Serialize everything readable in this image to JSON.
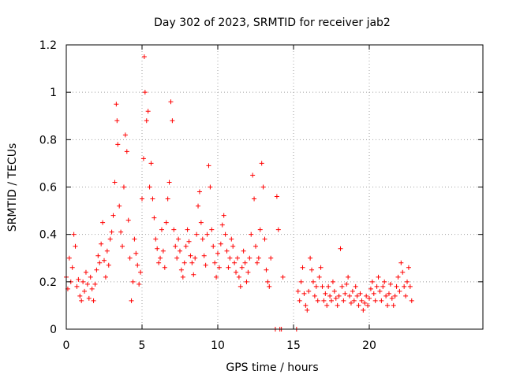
{
  "chart_data": {
    "type": "scatter",
    "title": "Day 302 of 2023, SRMTID for receiver jab2",
    "xlabel": "GPS time / hours",
    "ylabel": "SRMTID / TECUs",
    "xlim": [
      0,
      27.5
    ],
    "ylim": [
      0,
      1.2
    ],
    "xticks": [
      0,
      5,
      10,
      15,
      20
    ],
    "xtick_labels": [
      "0",
      "5",
      "10",
      "15",
      "20"
    ],
    "yticks": [
      0,
      0.2,
      0.4,
      0.6,
      0.8,
      1.0,
      1.2
    ],
    "ytick_labels": [
      "0",
      "0.2",
      "0.4",
      "0.6",
      "0.8",
      "1",
      "1.2"
    ],
    "grid": true,
    "legend": "none",
    "marker": "plus",
    "color": "#ff0000",
    "series": [
      {
        "name": "jab2",
        "points": [
          [
            0.0,
            0.22
          ],
          [
            0.1,
            0.17
          ],
          [
            0.2,
            0.3
          ],
          [
            0.3,
            0.2
          ],
          [
            0.4,
            0.26
          ],
          [
            0.5,
            0.4
          ],
          [
            0.6,
            0.35
          ],
          [
            0.7,
            0.18
          ],
          [
            0.8,
            0.21
          ],
          [
            0.9,
            0.14
          ],
          [
            1.0,
            0.12
          ],
          [
            1.1,
            0.2
          ],
          [
            1.2,
            0.16
          ],
          [
            1.3,
            0.24
          ],
          [
            1.4,
            0.19
          ],
          [
            1.5,
            0.13
          ],
          [
            1.6,
            0.22
          ],
          [
            1.7,
            0.17
          ],
          [
            1.8,
            0.12
          ],
          [
            1.9,
            0.19
          ],
          [
            2.0,
            0.25
          ],
          [
            2.1,
            0.31
          ],
          [
            2.2,
            0.28
          ],
          [
            2.3,
            0.36
          ],
          [
            2.4,
            0.45
          ],
          [
            2.5,
            0.29
          ],
          [
            2.6,
            0.22
          ],
          [
            2.7,
            0.33
          ],
          [
            2.8,
            0.27
          ],
          [
            2.9,
            0.38
          ],
          [
            3.0,
            0.41
          ],
          [
            3.1,
            0.48
          ],
          [
            3.2,
            0.62
          ],
          [
            3.3,
            0.95
          ],
          [
            3.35,
            0.88
          ],
          [
            3.4,
            0.78
          ],
          [
            3.5,
            0.52
          ],
          [
            3.6,
            0.41
          ],
          [
            3.7,
            0.35
          ],
          [
            3.8,
            0.6
          ],
          [
            3.9,
            0.82
          ],
          [
            4.0,
            0.75
          ],
          [
            4.1,
            0.46
          ],
          [
            4.2,
            0.3
          ],
          [
            4.3,
            0.12
          ],
          [
            4.4,
            0.2
          ],
          [
            4.5,
            0.38
          ],
          [
            4.6,
            0.32
          ],
          [
            4.7,
            0.27
          ],
          [
            4.8,
            0.19
          ],
          [
            4.9,
            0.24
          ],
          [
            5.0,
            0.55
          ],
          [
            5.1,
            0.72
          ],
          [
            5.15,
            1.15
          ],
          [
            5.2,
            1.0
          ],
          [
            5.3,
            0.88
          ],
          [
            5.4,
            0.92
          ],
          [
            5.5,
            0.6
          ],
          [
            5.6,
            0.7
          ],
          [
            5.7,
            0.55
          ],
          [
            5.8,
            0.47
          ],
          [
            5.9,
            0.38
          ],
          [
            6.0,
            0.34
          ],
          [
            6.1,
            0.28
          ],
          [
            6.2,
            0.3
          ],
          [
            6.3,
            0.42
          ],
          [
            6.4,
            0.33
          ],
          [
            6.5,
            0.26
          ],
          [
            6.6,
            0.45
          ],
          [
            6.7,
            0.55
          ],
          [
            6.8,
            0.62
          ],
          [
            6.9,
            0.96
          ],
          [
            7.0,
            0.88
          ],
          [
            7.1,
            0.42
          ],
          [
            7.2,
            0.35
          ],
          [
            7.3,
            0.3
          ],
          [
            7.4,
            0.38
          ],
          [
            7.5,
            0.33
          ],
          [
            7.6,
            0.25
          ],
          [
            7.7,
            0.22
          ],
          [
            7.8,
            0.28
          ],
          [
            7.9,
            0.35
          ],
          [
            8.0,
            0.42
          ],
          [
            8.1,
            0.37
          ],
          [
            8.2,
            0.31
          ],
          [
            8.3,
            0.28
          ],
          [
            8.4,
            0.23
          ],
          [
            8.5,
            0.3
          ],
          [
            8.6,
            0.4
          ],
          [
            8.7,
            0.52
          ],
          [
            8.8,
            0.58
          ],
          [
            8.9,
            0.45
          ],
          [
            9.0,
            0.38
          ],
          [
            9.1,
            0.31
          ],
          [
            9.2,
            0.27
          ],
          [
            9.3,
            0.4
          ],
          [
            9.4,
            0.69
          ],
          [
            9.5,
            0.6
          ],
          [
            9.6,
            0.42
          ],
          [
            9.7,
            0.35
          ],
          [
            9.8,
            0.28
          ],
          [
            9.9,
            0.22
          ],
          [
            10.0,
            0.32
          ],
          [
            10.1,
            0.26
          ],
          [
            10.2,
            0.36
          ],
          [
            10.3,
            0.44
          ],
          [
            10.4,
            0.48
          ],
          [
            10.5,
            0.4
          ],
          [
            10.6,
            0.33
          ],
          [
            10.7,
            0.26
          ],
          [
            10.8,
            0.3
          ],
          [
            10.9,
            0.38
          ],
          [
            11.0,
            0.35
          ],
          [
            11.1,
            0.28
          ],
          [
            11.2,
            0.24
          ],
          [
            11.3,
            0.3
          ],
          [
            11.4,
            0.22
          ],
          [
            11.5,
            0.18
          ],
          [
            11.6,
            0.26
          ],
          [
            11.7,
            0.33
          ],
          [
            11.8,
            0.28
          ],
          [
            11.9,
            0.2
          ],
          [
            12.0,
            0.24
          ],
          [
            12.1,
            0.3
          ],
          [
            12.2,
            0.4
          ],
          [
            12.3,
            0.65
          ],
          [
            12.4,
            0.55
          ],
          [
            12.5,
            0.35
          ],
          [
            12.6,
            0.28
          ],
          [
            12.7,
            0.3
          ],
          [
            12.8,
            0.42
          ],
          [
            12.9,
            0.7
          ],
          [
            13.0,
            0.6
          ],
          [
            13.1,
            0.38
          ],
          [
            13.2,
            0.25
          ],
          [
            13.3,
            0.2
          ],
          [
            13.4,
            0.18
          ],
          [
            13.5,
            0.3
          ],
          [
            13.8,
            0.0
          ],
          [
            13.9,
            0.56
          ],
          [
            14.0,
            0.42
          ],
          [
            14.1,
            0.0
          ],
          [
            14.2,
            0.0
          ],
          [
            14.3,
            0.22
          ],
          [
            15.2,
            0.0
          ],
          [
            15.3,
            0.16
          ],
          [
            15.4,
            0.12
          ],
          [
            15.5,
            0.2
          ],
          [
            15.6,
            0.26
          ],
          [
            15.7,
            0.15
          ],
          [
            15.8,
            0.1
          ],
          [
            15.9,
            0.08
          ],
          [
            16.0,
            0.16
          ],
          [
            16.1,
            0.3
          ],
          [
            16.2,
            0.25
          ],
          [
            16.3,
            0.2
          ],
          [
            16.4,
            0.14
          ],
          [
            16.5,
            0.18
          ],
          [
            16.6,
            0.12
          ],
          [
            16.7,
            0.22
          ],
          [
            16.8,
            0.26
          ],
          [
            16.9,
            0.18
          ],
          [
            17.0,
            0.12
          ],
          [
            17.1,
            0.15
          ],
          [
            17.2,
            0.1
          ],
          [
            17.3,
            0.18
          ],
          [
            17.4,
            0.14
          ],
          [
            17.5,
            0.12
          ],
          [
            17.6,
            0.2
          ],
          [
            17.7,
            0.16
          ],
          [
            17.8,
            0.13
          ],
          [
            17.9,
            0.1
          ],
          [
            18.0,
            0.14
          ],
          [
            18.1,
            0.34
          ],
          [
            18.2,
            0.18
          ],
          [
            18.3,
            0.12
          ],
          [
            18.4,
            0.15
          ],
          [
            18.5,
            0.19
          ],
          [
            18.6,
            0.22
          ],
          [
            18.7,
            0.14
          ],
          [
            18.8,
            0.11
          ],
          [
            18.9,
            0.16
          ],
          [
            19.0,
            0.12
          ],
          [
            19.1,
            0.18
          ],
          [
            19.2,
            0.14
          ],
          [
            19.3,
            0.1
          ],
          [
            19.4,
            0.15
          ],
          [
            19.5,
            0.12
          ],
          [
            19.6,
            0.08
          ],
          [
            19.7,
            0.11
          ],
          [
            19.8,
            0.14
          ],
          [
            19.9,
            0.1
          ],
          [
            20.0,
            0.13
          ],
          [
            20.1,
            0.17
          ],
          [
            20.2,
            0.2
          ],
          [
            20.3,
            0.15
          ],
          [
            20.4,
            0.12
          ],
          [
            20.5,
            0.18
          ],
          [
            20.6,
            0.22
          ],
          [
            20.7,
            0.16
          ],
          [
            20.8,
            0.12
          ],
          [
            20.9,
            0.18
          ],
          [
            21.0,
            0.2
          ],
          [
            21.1,
            0.14
          ],
          [
            21.2,
            0.1
          ],
          [
            21.3,
            0.15
          ],
          [
            21.4,
            0.19
          ],
          [
            21.5,
            0.13
          ],
          [
            21.6,
            0.1
          ],
          [
            21.7,
            0.14
          ],
          [
            21.8,
            0.18
          ],
          [
            21.9,
            0.22
          ],
          [
            22.0,
            0.16
          ],
          [
            22.1,
            0.28
          ],
          [
            22.2,
            0.24
          ],
          [
            22.3,
            0.18
          ],
          [
            22.4,
            0.14
          ],
          [
            22.5,
            0.2
          ],
          [
            22.6,
            0.26
          ],
          [
            22.7,
            0.18
          ],
          [
            22.8,
            0.12
          ]
        ]
      }
    ]
  }
}
